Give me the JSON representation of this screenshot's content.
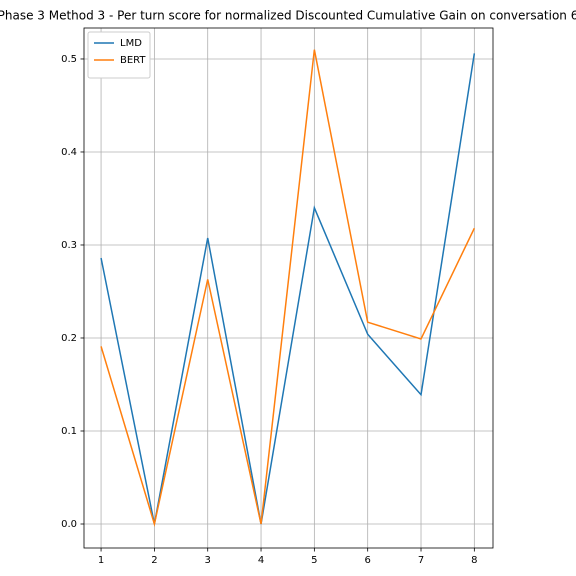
{
  "chart_data": {
    "type": "line",
    "title": "Phase 3 Method 3 - Per turn score for normalized Discounted Cumulative Gain on conversation 6",
    "x": [
      1,
      2,
      3,
      4,
      5,
      6,
      7,
      8
    ],
    "series": [
      {
        "name": "LMD",
        "color": "#1f77b4",
        "values": [
          0.286,
          0,
          0.3075,
          0,
          0.34,
          0.204,
          0.139,
          0.506
        ]
      },
      {
        "name": "BERT",
        "color": "#ff7f0e",
        "values": [
          0.191,
          0,
          0.263,
          0,
          0.51,
          0.217,
          0.199,
          0.318
        ]
      }
    ],
    "xlim": [
      0.68,
      8.35
    ],
    "xticks": [
      1,
      2,
      3,
      4,
      5,
      6,
      7,
      8
    ],
    "ylim": [
      -0.0258,
      0.5333
    ],
    "yticks": [
      {
        "value": 0,
        "label": "0.0"
      },
      0.1,
      0.2,
      0.3,
      0.4,
      0.5
    ],
    "grid": true,
    "legend": "upper-left"
  }
}
